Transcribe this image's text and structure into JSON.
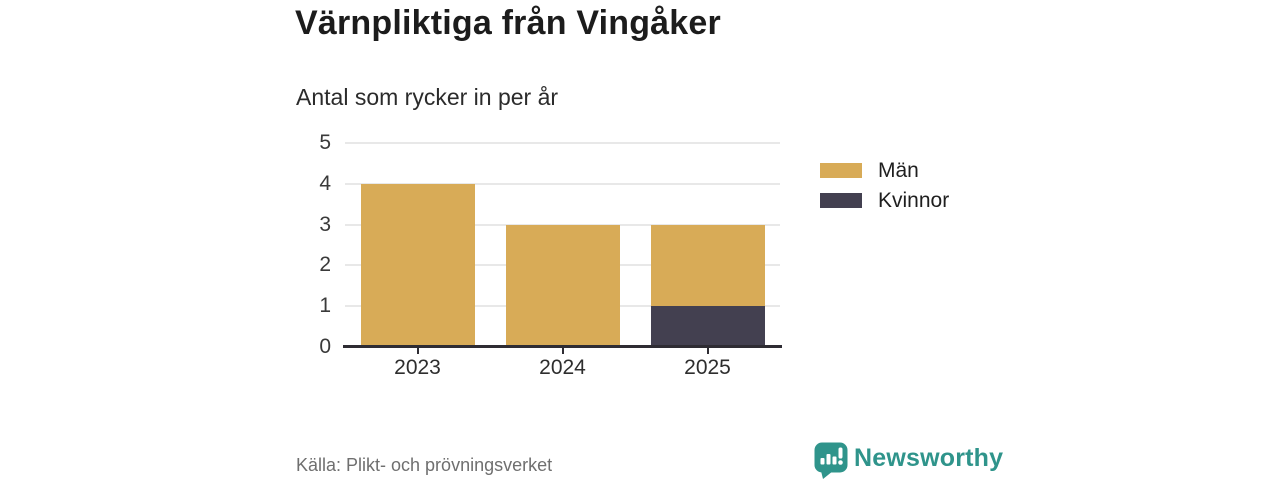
{
  "chart_data": {
    "type": "bar",
    "stacked": true,
    "title": "Värnpliktiga från Vingåker",
    "subtitle": "Antal som rycker in per år",
    "categories": [
      "2023",
      "2024",
      "2025"
    ],
    "series": [
      {
        "name": "Män",
        "color": "#d8ab57",
        "values": [
          4,
          3,
          2
        ]
      },
      {
        "name": "Kvinnor",
        "color": "#434050",
        "values": [
          0,
          0,
          1
        ]
      }
    ],
    "stack_bottom_first": [
      "Kvinnor",
      "Män"
    ],
    "totals": [
      4,
      3,
      3
    ],
    "xlabel": "",
    "ylabel": "",
    "ylim": [
      0,
      5
    ],
    "yticks": [
      0,
      1,
      2,
      3,
      4,
      5
    ],
    "grid": true,
    "legend_position": "right"
  },
  "footer": {
    "source": "Källa: Plikt- och prövningsverket",
    "brand": "Newsworthy"
  },
  "colors": {
    "background": "#ffffff",
    "accent_teal": "#2f948b",
    "axis": "#2e2c33",
    "grid": "#e8e8e8",
    "title_text": "#1c1c1c",
    "muted_text": "#6f6f6f",
    "bar_men": "#d8ab57",
    "bar_women": "#434050"
  }
}
